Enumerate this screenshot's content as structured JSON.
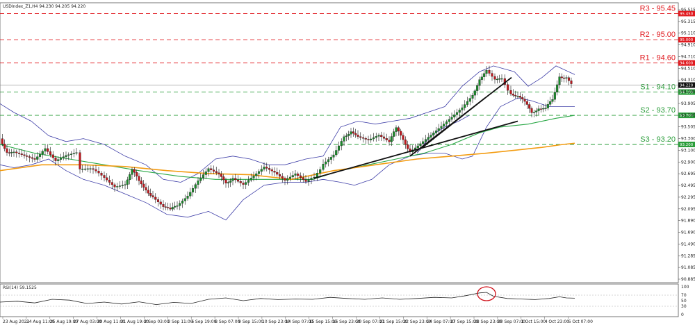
{
  "header": {
    "symbol_info": "USDIndex_Z1,H4  94.230 94.205 94.220"
  },
  "rsi_panel": {
    "label": "RSI(14) 59.1525"
  },
  "colors": {
    "resistance": "#e0191e",
    "support": "#2a9d3a",
    "bull_candle": "#1b8a2b",
    "bear_candle": "#c0181e",
    "bollinger": "#3b3ba6",
    "ma_fast": "#28a745",
    "ma_slow": "#f39c12",
    "trendline": "#111111",
    "rsi_line": "#222222",
    "highlight_circle": "#d0111a",
    "current_price_tag": "#111111"
  },
  "chart_data": {
    "type": "candlestick",
    "title": "",
    "y_axis_ticks": [
      "95.515",
      "95.315",
      "95.110",
      "94.910",
      "94.710",
      "94.510",
      "94.310",
      "94.105",
      "93.905",
      "93.705",
      "93.505",
      "93.300",
      "93.100",
      "92.900",
      "92.695",
      "92.495",
      "92.295",
      "92.095",
      "91.890",
      "91.690",
      "91.490",
      "91.285",
      "91.085",
      "90.885"
    ],
    "ylim": [
      90.885,
      95.515
    ],
    "x_axis_labels": [
      "23 Aug 2021",
      "24 Aug 11:00",
      "25 Aug 19:00",
      "27 Aug 03:00",
      "30 Aug 11:00",
      "31 Aug 19:00",
      "2 Sep 03:00",
      "3 Sep 11:00",
      "6 Sep 19:00",
      "8 Sep 07:00",
      "9 Sep 15:00",
      "10 Sep 23:00",
      "14 Sep 07:00",
      "15 Sep 15:00",
      "16 Sep 23:00",
      "20 Sep 07:00",
      "21 Sep 15:00",
      "22 Sep 23:00",
      "24 Sep 07:00",
      "27 Sep 15:00",
      "28 Sep 23:00",
      "30 Sep 07:00",
      "1 Oct 15:00",
      "4 Oct 23:00",
      "6 Oct 07:00"
    ],
    "current_price": 94.22,
    "levels": [
      {
        "label": "R3 - 95.45",
        "value": 95.45,
        "kind": "resistance",
        "tag": "95.450"
      },
      {
        "label": "R2 - 95.00",
        "value": 95.0,
        "kind": "resistance",
        "tag": "95.000"
      },
      {
        "label": "R1 - 94.60",
        "value": 94.6,
        "kind": "resistance",
        "tag": "94.600"
      },
      {
        "label": "S1 - 94.10",
        "value": 94.1,
        "kind": "support",
        "tag": "94.100"
      },
      {
        "label": "S2 - 93.70",
        "value": 93.7,
        "kind": "support",
        "tag": "93.700"
      },
      {
        "label": "S3 - 93.20",
        "value": 93.2,
        "kind": "support",
        "tag": "93.200"
      }
    ],
    "current_price_tag": "94.220",
    "bollinger_upper": [
      [
        0,
        93.9
      ],
      [
        20,
        93.75
      ],
      [
        45,
        93.6
      ],
      [
        70,
        93.35
      ],
      [
        95,
        93.25
      ],
      [
        120,
        93.3
      ],
      [
        150,
        93.2
      ],
      [
        180,
        93.0
      ],
      [
        210,
        92.85
      ],
      [
        235,
        92.6
      ],
      [
        260,
        92.55
      ],
      [
        285,
        92.7
      ],
      [
        310,
        92.95
      ],
      [
        335,
        93.0
      ],
      [
        360,
        92.95
      ],
      [
        385,
        92.85
      ],
      [
        410,
        92.85
      ],
      [
        440,
        92.95
      ],
      [
        465,
        93.0
      ],
      [
        490,
        93.5
      ],
      [
        515,
        93.6
      ],
      [
        540,
        93.55
      ],
      [
        565,
        93.6
      ],
      [
        590,
        93.65
      ],
      [
        615,
        93.75
      ],
      [
        640,
        93.85
      ],
      [
        665,
        94.2
      ],
      [
        690,
        94.45
      ],
      [
        710,
        94.55
      ],
      [
        740,
        94.45
      ],
      [
        760,
        94.2
      ],
      [
        780,
        94.35
      ],
      [
        800,
        94.55
      ],
      [
        827,
        94.4
      ]
    ],
    "bollinger_lower": [
      [
        0,
        92.85
      ],
      [
        20,
        92.8
      ],
      [
        45,
        92.85
      ],
      [
        70,
        92.95
      ],
      [
        95,
        92.75
      ],
      [
        120,
        92.6
      ],
      [
        150,
        92.5
      ],
      [
        180,
        92.35
      ],
      [
        210,
        92.2
      ],
      [
        240,
        92.0
      ],
      [
        270,
        91.95
      ],
      [
        300,
        92.05
      ],
      [
        325,
        91.9
      ],
      [
        350,
        92.25
      ],
      [
        380,
        92.5
      ],
      [
        410,
        92.55
      ],
      [
        440,
        92.55
      ],
      [
        465,
        92.6
      ],
      [
        490,
        92.55
      ],
      [
        510,
        92.5
      ],
      [
        535,
        92.6
      ],
      [
        560,
        92.85
      ],
      [
        590,
        93.0
      ],
      [
        615,
        93.05
      ],
      [
        640,
        93.05
      ],
      [
        665,
        92.95
      ],
      [
        680,
        93.0
      ],
      [
        700,
        93.5
      ],
      [
        720,
        93.85
      ],
      [
        745,
        94.0
      ],
      [
        765,
        93.95
      ],
      [
        790,
        93.85
      ],
      [
        810,
        93.85
      ],
      [
        827,
        93.85
      ]
    ],
    "bollinger_mid": [
      [
        600,
        93.05
      ],
      [
        620,
        93.35
      ],
      [
        640,
        93.5
      ],
      [
        660,
        93.6
      ],
      [
        675,
        93.7
      ]
    ],
    "ma_fast": [
      [
        0,
        93.2
      ],
      [
        50,
        93.05
      ],
      [
        100,
        92.95
      ],
      [
        150,
        92.85
      ],
      [
        200,
        92.75
      ],
      [
        260,
        92.65
      ],
      [
        310,
        92.6
      ],
      [
        360,
        92.6
      ],
      [
        410,
        92.6
      ],
      [
        450,
        92.6
      ],
      [
        490,
        92.75
      ],
      [
        530,
        92.85
      ],
      [
        570,
        92.95
      ],
      [
        610,
        93.05
      ],
      [
        650,
        93.2
      ],
      [
        690,
        93.4
      ],
      [
        720,
        93.5
      ],
      [
        760,
        93.55
      ],
      [
        800,
        93.65
      ],
      [
        827,
        93.7
      ]
    ],
    "ma_slow": [
      [
        0,
        92.75
      ],
      [
        60,
        92.85
      ],
      [
        120,
        92.85
      ],
      [
        180,
        92.82
      ],
      [
        240,
        92.75
      ],
      [
        300,
        92.7
      ],
      [
        360,
        92.68
      ],
      [
        420,
        92.6
      ],
      [
        480,
        92.75
      ],
      [
        540,
        92.85
      ],
      [
        600,
        92.95
      ],
      [
        650,
        93.0
      ],
      [
        700,
        93.05
      ],
      [
        740,
        93.1
      ],
      [
        780,
        93.15
      ],
      [
        810,
        93.2
      ],
      [
        827,
        93.22
      ]
    ],
    "trendlines": [
      [
        [
          452,
          92.62
        ],
        [
          745,
          93.6
        ]
      ],
      [
        [
          590,
          93.0
        ],
        [
          736,
          94.35
        ]
      ],
      [
        [
          608,
          93.15
        ],
        [
          698,
          94.0
        ]
      ]
    ],
    "rsi": {
      "ylim": [
        0,
        100
      ],
      "ticks": [
        "100",
        "70",
        "50",
        "30",
        "0"
      ],
      "values": [
        [
          0,
          45
        ],
        [
          25,
          48
        ],
        [
          50,
          42
        ],
        [
          75,
          55
        ],
        [
          100,
          52
        ],
        [
          125,
          40
        ],
        [
          150,
          45
        ],
        [
          175,
          38
        ],
        [
          200,
          46
        ],
        [
          225,
          36
        ],
        [
          250,
          44
        ],
        [
          275,
          40
        ],
        [
          300,
          55
        ],
        [
          325,
          60
        ],
        [
          350,
          50
        ],
        [
          375,
          58
        ],
        [
          400,
          54
        ],
        [
          425,
          56
        ],
        [
          450,
          55
        ],
        [
          475,
          62
        ],
        [
          500,
          58
        ],
        [
          525,
          55
        ],
        [
          550,
          60
        ],
        [
          575,
          55
        ],
        [
          600,
          58
        ],
        [
          625,
          62
        ],
        [
          650,
          60
        ],
        [
          670,
          68
        ],
        [
          690,
          78
        ],
        [
          700,
          80
        ],
        [
          710,
          66
        ],
        [
          730,
          58
        ],
        [
          750,
          56
        ],
        [
          770,
          54
        ],
        [
          790,
          58
        ],
        [
          805,
          64
        ],
        [
          815,
          60
        ],
        [
          827,
          59
        ]
      ],
      "highlight": {
        "x": 700,
        "y": 75
      }
    }
  }
}
